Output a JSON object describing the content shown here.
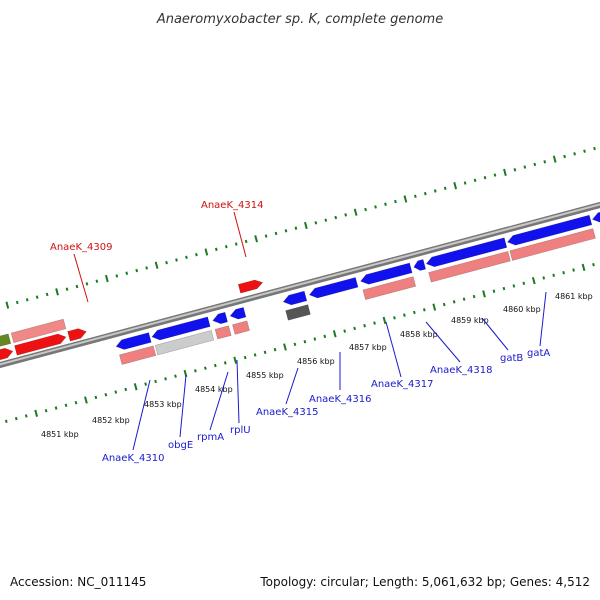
{
  "title": "Anaeromyxobacter sp. K, complete genome",
  "footer": {
    "accession": "Accession: NC_011145",
    "summary": "Topology: circular; Length: 5,061,632 bp; Genes: 4,512"
  },
  "colors": {
    "forward_gene": "#ee1111",
    "forward_gene_light": "#f08888",
    "reverse_gene": "#1111ee",
    "reverse_gene_light": "#ee8080",
    "olive_gene": "#668822",
    "grey_gene": "#555555",
    "light_grey_gene": "#cccccc",
    "backbone": "#888888",
    "ruler": "#1e7a1e",
    "label_blue": "#1a1acc",
    "label_red": "#cc1111"
  },
  "kbp_labels": [
    "4851 kbp",
    "4852 kbp",
    "4853 kbp",
    "4854 kbp",
    "4855 kbp",
    "4856 kbp",
    "4857 kbp",
    "4858 kbp",
    "4859 kbp",
    "4860 kbp",
    "4861 kbp"
  ],
  "gene_labels": [
    {
      "text": "AnaeK_4309",
      "strand": "forward"
    },
    {
      "text": "AnaeK_4314",
      "strand": "forward"
    },
    {
      "text": "AnaeK_4310",
      "strand": "reverse"
    },
    {
      "text": "obgE",
      "strand": "reverse"
    },
    {
      "text": "rpmA",
      "strand": "reverse"
    },
    {
      "text": "rplU",
      "strand": "reverse"
    },
    {
      "text": "AnaeK_4315",
      "strand": "reverse"
    },
    {
      "text": "AnaeK_4316",
      "strand": "reverse"
    },
    {
      "text": "AnaeK_4317",
      "strand": "reverse"
    },
    {
      "text": "AnaeK_4318",
      "strand": "reverse"
    },
    {
      "text": "gatB",
      "strand": "reverse"
    },
    {
      "text": "gatA",
      "strand": "reverse"
    }
  ]
}
